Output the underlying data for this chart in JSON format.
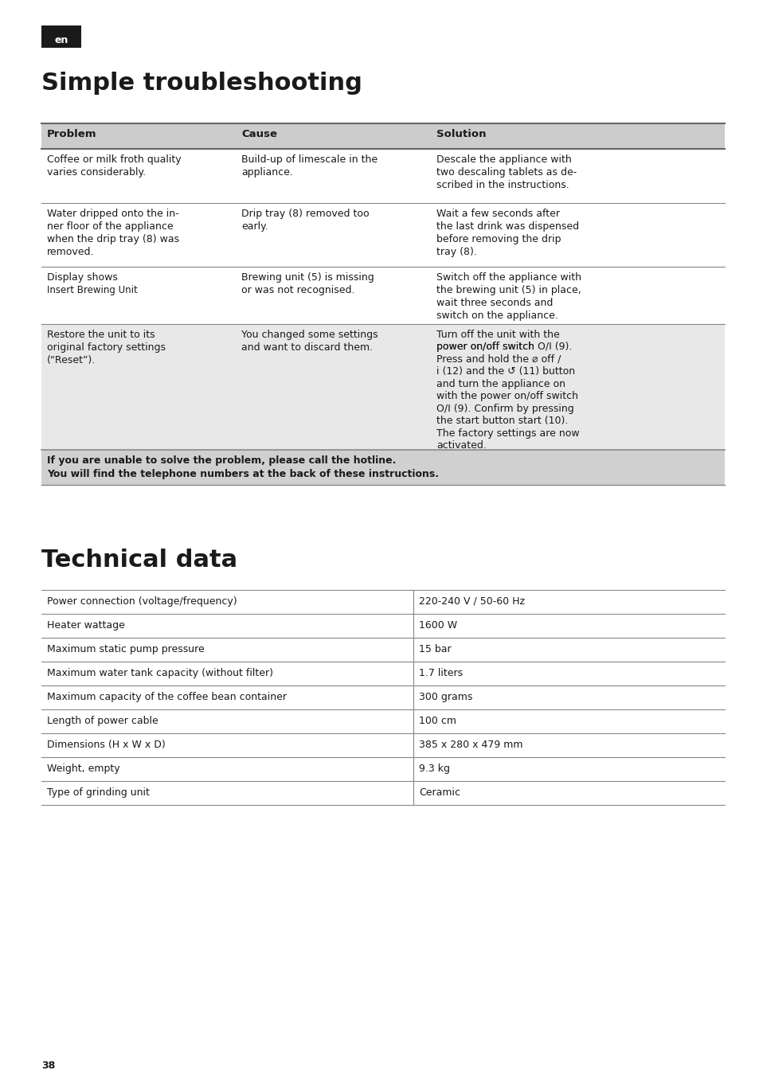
{
  "page_bg": "#ffffff",
  "page_number": "38",
  "lang_badge_text": "en",
  "lang_badge_bg": "#1a1a1a",
  "lang_badge_fg": "#ffffff",
  "section1_title": "Simple troubleshooting",
  "table1_header": [
    "Problem",
    "Cause",
    "Solution"
  ],
  "table1_header_bg": "#cccccc",
  "table1_rows": [
    {
      "problem": "Coffee or milk froth quality\nvaries considerably.",
      "cause": "Build-up of limescale in the\nappliance.",
      "solution": "Descale the appliance with\ntwo descaling tablets as de-\nscribed in the instructions.",
      "bg": "#ffffff"
    },
    {
      "problem": "Water dripped onto the in-\nner floor of the appliance\nwhen the drip tray (8) was\nremoved.",
      "cause": "Drip tray (8) removed too\nearly.",
      "solution": "Wait a few seconds after\nthe last drink was dispensed\nbefore removing the drip\ntray (8).",
      "bg": "#ffffff"
    },
    {
      "problem": "Display shows\nInsert Brewing Unit",
      "cause": "Brewing unit (5) is missing\nor was not recognised.",
      "solution": "Switch off the appliance with\nthe brewing unit (5) in place,\nwait three seconds and\nswitch on the appliance.",
      "bg": "#ffffff"
    },
    {
      "problem": "Restore the unit to its\noriginal factory settings\n(“Reset”).",
      "cause": "You changed some settings\nand want to discard them.",
      "solution_parts": [
        {
          "text": "Turn off the unit with the\npower on/off switch ",
          "bold": false
        },
        {
          "text": "O/I",
          "bold": true
        },
        {
          "text": " (9).\nPress and hold the ⌀ ",
          "bold": false
        },
        {
          "text": "off /\ni",
          "bold": true
        },
        {
          "text": " (12) and the ↺ (11) button\nand turn the appliance on\nwith the power on/off switch\n",
          "bold": false
        },
        {
          "text": "O/I",
          "bold": true
        },
        {
          "text": " (9). Confirm by pressing\nthe start button ",
          "bold": false
        },
        {
          "text": "start",
          "bold": true
        },
        {
          "text": " (10).\nThe factory settings are now\nactivated.",
          "bold": false
        }
      ],
      "bg": "#e8e8e8"
    }
  ],
  "table1_footer": "If you are unable to solve the problem, please call the hotline.\nYou will find the telephone numbers at the back of these instructions.",
  "table1_footer_bg": "#d0d0d0",
  "section2_title": "Technical data",
  "table2_rows": [
    {
      "label": "Power connection (voltage/frequency)",
      "value": "220-240 V / 50-60 Hz"
    },
    {
      "label": "Heater wattage",
      "value": "1600 W"
    },
    {
      "label": "Maximum static pump pressure",
      "value": "15 bar"
    },
    {
      "label": "Maximum water tank capacity (without filter)",
      "value": "1.7 liters"
    },
    {
      "label": "Maximum capacity of the coffee bean container",
      "value": "300 grams"
    },
    {
      "label": "Length of power cable",
      "value": "100 cm"
    },
    {
      "label": "Dimensions (H x W x D)",
      "value": "385 x 280 x 479 mm"
    },
    {
      "label": "Weight, empty",
      "value": "9.3 kg"
    },
    {
      "label": "Type of grinding unit",
      "value": "Ceramic"
    }
  ]
}
